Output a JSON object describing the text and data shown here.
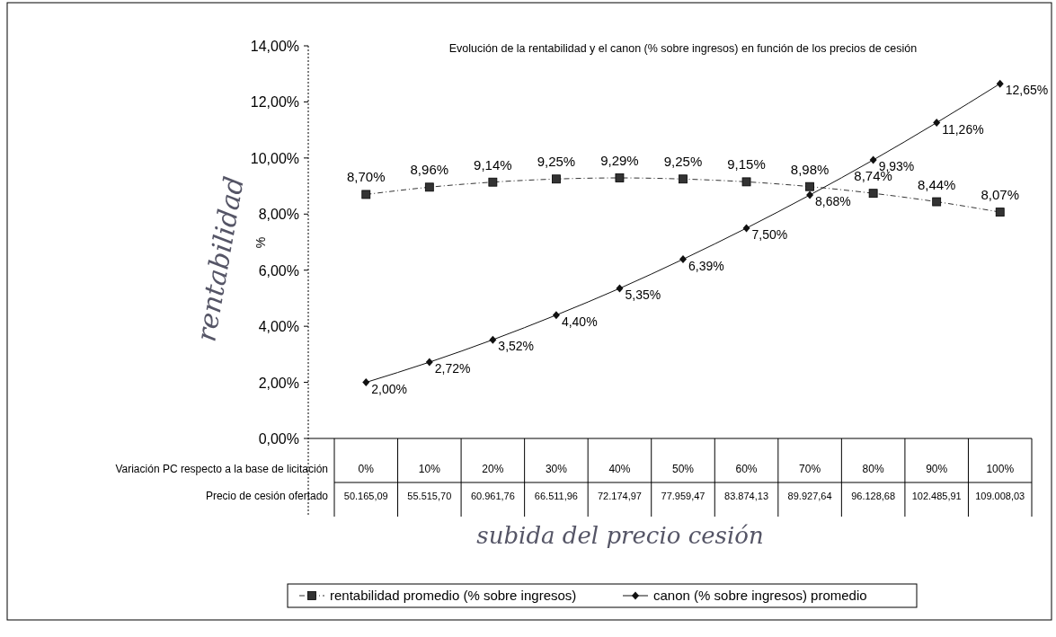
{
  "chart_data": {
    "type": "line",
    "title": "Evolución de la rentabilidad y el canon (% sobre ingresos) en función de los precios de cesión",
    "ylabel": "%",
    "xlabel": "Variación PC respecto a la base de licitación",
    "categories": [
      "0%",
      "10%",
      "20%",
      "30%",
      "40%",
      "50%",
      "60%",
      "70%",
      "80%",
      "90%",
      "100%"
    ],
    "ylim": [
      0,
      14
    ],
    "yticks": [
      {
        "value": 0,
        "label": "0,00%"
      },
      {
        "value": 2,
        "label": "2,00%"
      },
      {
        "value": 4,
        "label": "4,00%"
      },
      {
        "value": 6,
        "label": "6,00%"
      },
      {
        "value": 8,
        "label": "8,00%"
      },
      {
        "value": 10,
        "label": "10,00%"
      },
      {
        "value": 12,
        "label": "12,00%"
      },
      {
        "value": 14,
        "label": "14,00%"
      }
    ],
    "grid": false,
    "legend": "bottom",
    "series": [
      {
        "name": "rentabilidad promedio (% sobre ingresos)",
        "color": "#333333",
        "marker": "square",
        "line_style": "dashed",
        "values": [
          8.7,
          8.96,
          9.14,
          9.25,
          9.29,
          9.25,
          9.15,
          8.98,
          8.74,
          8.44,
          8.07
        ],
        "value_labels": [
          "8,70%",
          "8,96%",
          "9,14%",
          "9,25%",
          "9,29%",
          "9,25%",
          "9,15%",
          "8,98%",
          "8,74%",
          "8,44%",
          "8,07%"
        ]
      },
      {
        "name": "canon (% sobre ingresos) promedio",
        "color": "#111111",
        "marker": "diamond",
        "line_style": "solid",
        "values": [
          2.0,
          2.72,
          3.52,
          4.4,
          5.35,
          6.39,
          7.5,
          8.68,
          9.93,
          11.26,
          12.65
        ],
        "value_labels": [
          "2,00%",
          "2,72%",
          "3,52%",
          "4,40%",
          "5,35%",
          "6,39%",
          "7,50%",
          "8,68%",
          "9,93%",
          "11,26%",
          "12,65%"
        ]
      }
    ],
    "annotations": [
      "Precio de cesión ofertado",
      "rentabilidad",
      "subida del precio cesión",
      "50.165,09",
      "55.515,70",
      "60.961,76",
      "66.511,96",
      "72.174,97",
      "77.959,47",
      "83.874,13",
      "89.927,64",
      "96.128,68",
      "102.485,91",
      "109.008,03"
    ]
  }
}
